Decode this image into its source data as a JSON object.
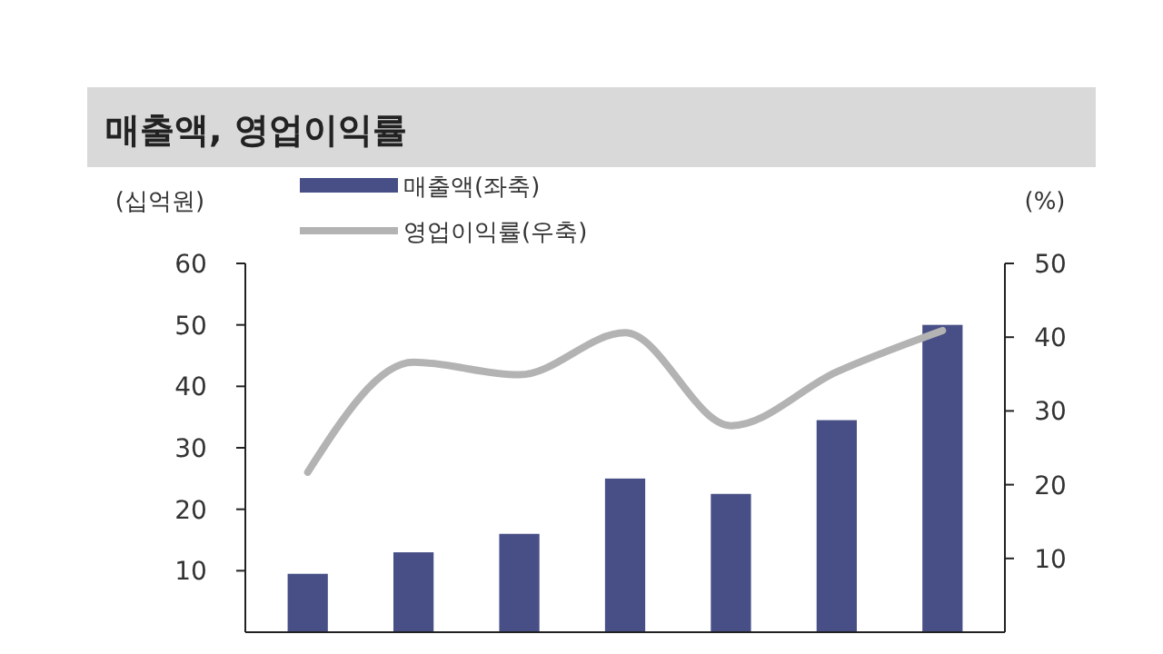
{
  "chart_data": {
    "type": "bar",
    "title": "매출액, 영업이익률",
    "ylabel": "(십억원)",
    "y2label": "(%)",
    "categories": [
      null,
      null,
      null,
      null,
      null,
      null,
      null
    ],
    "series": [
      {
        "name": "매출액(좌축)",
        "color": "#474f86",
        "values": [
          9.5,
          13,
          16,
          25,
          22.5,
          34.5,
          50
        ]
      },
      {
        "name": "영업이익률(우축)",
        "type": "line",
        "axis": "y2",
        "color": "#b3b3b3",
        "values": [
          21.7,
          36.6,
          34.9,
          40.6,
          28.0,
          35.3,
          40.9
        ]
      }
    ],
    "ylim": [
      0,
      60
    ],
    "yticks": [
      10,
      20,
      30,
      40,
      50,
      60
    ],
    "y2lim": [
      0,
      50
    ],
    "y2ticks": [
      10,
      20,
      30,
      40,
      50
    ],
    "legend": "top left",
    "grid": false
  }
}
